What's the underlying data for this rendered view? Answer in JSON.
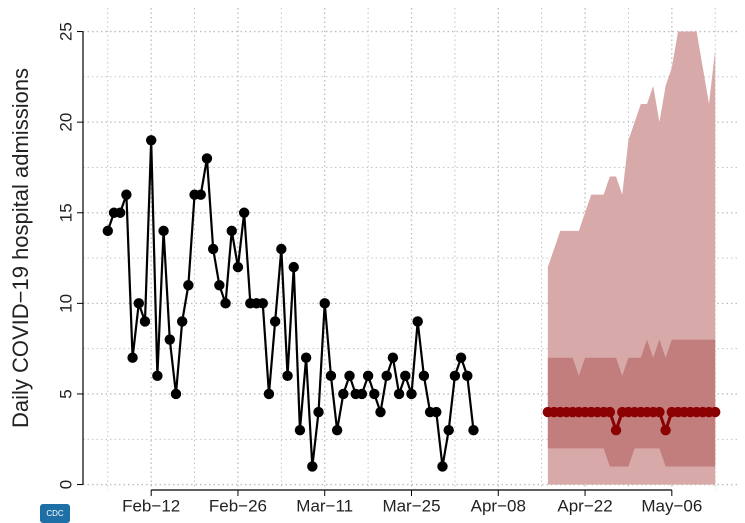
{
  "chart_data": {
    "type": "line",
    "ylabel": "Daily COVID−19 hospital admissions",
    "logo": "CDC",
    "xlim": [
      "02-01",
      "05-17"
    ],
    "ylim": [
      -0.3,
      26.3
    ],
    "xticks": [
      {
        "value": "02-12",
        "label": "Feb−12"
      },
      {
        "value": "02-26",
        "label": "Feb−26"
      },
      {
        "value": "03-11",
        "label": "Mar−11"
      },
      {
        "value": "03-25",
        "label": "Mar−25"
      },
      {
        "value": "04-08",
        "label": "Apr−08"
      },
      {
        "value": "04-22",
        "label": "Apr−22"
      },
      {
        "value": "05-06",
        "label": "May−06"
      }
    ],
    "xminor": [
      "02-05",
      "02-19",
      "03-04",
      "03-18",
      "04-01",
      "04-15",
      "04-29",
      "05-13"
    ],
    "yticks": [
      0,
      5,
      10,
      15,
      20,
      25
    ],
    "yminor": [
      2.5,
      7.5,
      12.5,
      17.5,
      22.5
    ],
    "grid": true,
    "observed": {
      "color": "#000000",
      "x": [
        "02-05",
        "02-06",
        "02-07",
        "02-08",
        "02-09",
        "02-10",
        "02-11",
        "02-12",
        "02-13",
        "02-14",
        "02-15",
        "02-16",
        "02-17",
        "02-18",
        "02-19",
        "02-20",
        "02-21",
        "02-22",
        "02-23",
        "02-24",
        "02-25",
        "02-26",
        "02-27",
        "02-28",
        "02-29",
        "03-01",
        "03-02",
        "03-03",
        "03-04",
        "03-05",
        "03-06",
        "03-07",
        "03-08",
        "03-09",
        "03-10",
        "03-11",
        "03-12",
        "03-13",
        "03-14",
        "03-15",
        "03-16",
        "03-17",
        "03-18",
        "03-19",
        "03-20",
        "03-21",
        "03-22",
        "03-23",
        "03-24",
        "03-25",
        "03-26",
        "03-27",
        "03-28",
        "03-29",
        "03-30",
        "03-31",
        "04-01",
        "04-02",
        "04-03",
        "04-04"
      ],
      "values": [
        14,
        15,
        15,
        16,
        7,
        10,
        9,
        19,
        6,
        14,
        8,
        5,
        9,
        11,
        16,
        16,
        18,
        13,
        11,
        10,
        14,
        12,
        15,
        10,
        10,
        10,
        5,
        9,
        13,
        6,
        12,
        3,
        7,
        1,
        4,
        10,
        6,
        3,
        5,
        6,
        5,
        5,
        6,
        5,
        4,
        6,
        7,
        5,
        6,
        5,
        9,
        6,
        4,
        4,
        1,
        3,
        6,
        7,
        6,
        3
      ]
    },
    "forecast": {
      "color": "#8b0000",
      "x": [
        "04-16",
        "04-17",
        "04-18",
        "04-19",
        "04-20",
        "04-21",
        "04-22",
        "04-23",
        "04-24",
        "04-25",
        "04-26",
        "04-27",
        "04-28",
        "04-29",
        "04-30",
        "05-01",
        "05-02",
        "05-03",
        "05-04",
        "05-05",
        "05-06",
        "05-07",
        "05-08",
        "05-09",
        "05-10",
        "05-11",
        "05-12",
        "05-13"
      ],
      "values": [
        4,
        4,
        4,
        4,
        4,
        4,
        4,
        4,
        4,
        4,
        4,
        3,
        4,
        4,
        4,
        4,
        4,
        4,
        4,
        3,
        4,
        4,
        4,
        4,
        4,
        4,
        4,
        4
      ],
      "bands": [
        {
          "color": "#d8a9a9",
          "lower": [
            0,
            0,
            0,
            0,
            0,
            0,
            0,
            0,
            0,
            0,
            0,
            0,
            0,
            0,
            0,
            0,
            0,
            0,
            0,
            0,
            0,
            0,
            0,
            0,
            0,
            0,
            0,
            0
          ],
          "upper": [
            12,
            13,
            14,
            14,
            14,
            14,
            15,
            16,
            16,
            16,
            17,
            17,
            16,
            19,
            20,
            21,
            21,
            22,
            20,
            22,
            23,
            25,
            25,
            25,
            25,
            23,
            21,
            24
          ]
        },
        {
          "color": "#c27d7d",
          "lower": [
            2,
            2,
            2,
            2,
            2,
            2,
            2,
            2,
            2,
            2,
            1,
            1,
            1,
            1,
            2,
            2,
            2,
            2,
            2,
            1,
            1,
            1,
            1,
            1,
            1,
            1,
            1,
            1
          ],
          "upper": [
            7,
            7,
            7,
            7,
            7,
            6,
            7,
            7,
            7,
            7,
            7,
            7,
            6,
            7,
            7,
            7,
            8,
            7,
            8,
            7,
            8,
            8,
            8,
            8,
            8,
            8,
            8,
            8
          ]
        }
      ]
    }
  }
}
